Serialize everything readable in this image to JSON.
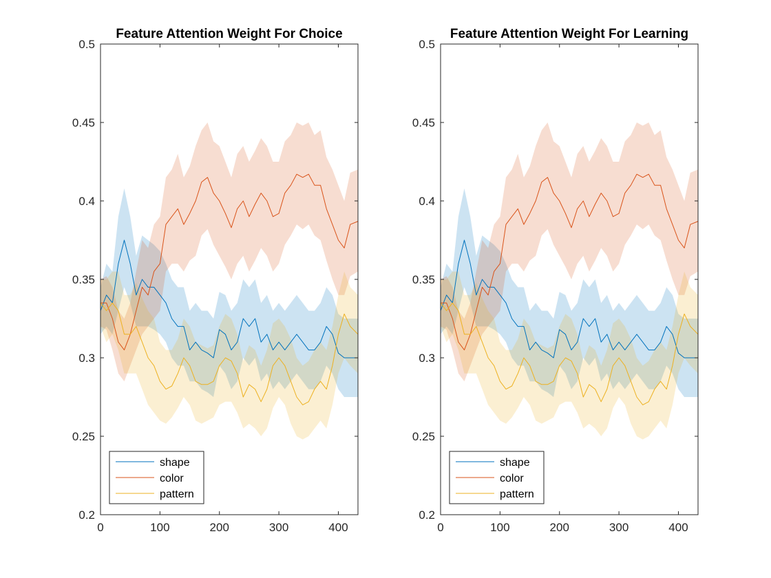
{
  "colors": {
    "shape": "#0072BD",
    "color": "#D95319",
    "pattern": "#EDB120",
    "axis": "#262626"
  },
  "chart_data": [
    {
      "type": "line",
      "title": "Feature Attention Weight For Choice",
      "xlabel": "",
      "ylabel": "",
      "xlim": [
        0,
        433
      ],
      "ylim": [
        0.2,
        0.5
      ],
      "xticks": [
        0,
        100,
        200,
        300,
        400
      ],
      "xtick_labels": [
        "0",
        "100",
        "200",
        "300",
        "400"
      ],
      "yticks": [
        0.2,
        0.25,
        0.3,
        0.35,
        0.4,
        0.45,
        0.5
      ],
      "ytick_labels": [
        "0.2",
        "0.25",
        "0.3",
        "0.35",
        "0.4",
        "0.45",
        "0.5"
      ],
      "grid": false,
      "legend_position": "bottom-left",
      "x": [
        0,
        10,
        20,
        30,
        40,
        50,
        60,
        70,
        80,
        90,
        100,
        110,
        120,
        130,
        140,
        150,
        160,
        170,
        180,
        190,
        200,
        210,
        220,
        230,
        240,
        250,
        260,
        270,
        280,
        290,
        300,
        310,
        320,
        330,
        340,
        350,
        360,
        370,
        380,
        390,
        400,
        410,
        420,
        433
      ],
      "series": [
        {
          "name": "shape",
          "color": "#0072BD",
          "values": [
            0.33,
            0.34,
            0.335,
            0.36,
            0.375,
            0.36,
            0.34,
            0.35,
            0.345,
            0.345,
            0.34,
            0.335,
            0.325,
            0.32,
            0.32,
            0.305,
            0.31,
            0.305,
            0.303,
            0.3,
            0.318,
            0.315,
            0.305,
            0.31,
            0.325,
            0.32,
            0.325,
            0.31,
            0.315,
            0.305,
            0.31,
            0.305,
            0.31,
            0.315,
            0.31,
            0.305,
            0.305,
            0.31,
            0.32,
            0.315,
            0.303,
            0.3,
            0.3,
            0.3
          ],
          "lower": [
            0.315,
            0.32,
            0.315,
            0.33,
            0.345,
            0.335,
            0.32,
            0.32,
            0.32,
            0.318,
            0.315,
            0.31,
            0.3,
            0.295,
            0.295,
            0.285,
            0.285,
            0.28,
            0.278,
            0.275,
            0.295,
            0.29,
            0.28,
            0.285,
            0.3,
            0.295,
            0.3,
            0.285,
            0.29,
            0.28,
            0.285,
            0.28,
            0.285,
            0.29,
            0.285,
            0.28,
            0.28,
            0.285,
            0.295,
            0.29,
            0.28,
            0.275,
            0.275,
            0.275
          ],
          "upper": [
            0.345,
            0.36,
            0.355,
            0.39,
            0.408,
            0.39,
            0.365,
            0.378,
            0.375,
            0.372,
            0.368,
            0.36,
            0.35,
            0.345,
            0.345,
            0.33,
            0.335,
            0.33,
            0.33,
            0.325,
            0.342,
            0.34,
            0.33,
            0.335,
            0.35,
            0.345,
            0.35,
            0.335,
            0.34,
            0.33,
            0.335,
            0.33,
            0.335,
            0.34,
            0.335,
            0.33,
            0.33,
            0.335,
            0.345,
            0.34,
            0.328,
            0.325,
            0.325,
            0.325
          ]
        },
        {
          "name": "color",
          "color": "#D95319",
          "values": [
            0.335,
            0.335,
            0.325,
            0.31,
            0.305,
            0.315,
            0.33,
            0.345,
            0.34,
            0.355,
            0.36,
            0.385,
            0.39,
            0.395,
            0.385,
            0.392,
            0.4,
            0.412,
            0.415,
            0.405,
            0.4,
            0.392,
            0.383,
            0.395,
            0.4,
            0.39,
            0.398,
            0.405,
            0.4,
            0.39,
            0.392,
            0.405,
            0.41,
            0.417,
            0.415,
            0.417,
            0.41,
            0.41,
            0.395,
            0.385,
            0.375,
            0.37,
            0.385,
            0.387
          ],
          "lower": [
            0.32,
            0.318,
            0.305,
            0.29,
            0.285,
            0.295,
            0.305,
            0.315,
            0.32,
            0.325,
            0.33,
            0.355,
            0.36,
            0.36,
            0.355,
            0.362,
            0.365,
            0.378,
            0.382,
            0.372,
            0.365,
            0.358,
            0.35,
            0.36,
            0.365,
            0.355,
            0.362,
            0.37,
            0.365,
            0.355,
            0.36,
            0.372,
            0.378,
            0.385,
            0.382,
            0.385,
            0.378,
            0.375,
            0.362,
            0.35,
            0.34,
            0.34,
            0.352,
            0.355
          ],
          "upper": [
            0.35,
            0.352,
            0.345,
            0.33,
            0.325,
            0.335,
            0.355,
            0.375,
            0.37,
            0.385,
            0.39,
            0.415,
            0.42,
            0.43,
            0.415,
            0.422,
            0.435,
            0.445,
            0.45,
            0.438,
            0.435,
            0.425,
            0.415,
            0.43,
            0.435,
            0.425,
            0.432,
            0.44,
            0.435,
            0.425,
            0.425,
            0.438,
            0.442,
            0.45,
            0.448,
            0.45,
            0.442,
            0.445,
            0.428,
            0.42,
            0.41,
            0.4,
            0.418,
            0.42
          ]
        },
        {
          "name": "pattern",
          "color": "#EDB120",
          "values": [
            0.335,
            0.33,
            0.335,
            0.33,
            0.315,
            0.315,
            0.32,
            0.31,
            0.3,
            0.295,
            0.285,
            0.28,
            0.282,
            0.29,
            0.3,
            0.295,
            0.285,
            0.283,
            0.283,
            0.285,
            0.295,
            0.3,
            0.298,
            0.29,
            0.275,
            0.283,
            0.28,
            0.272,
            0.28,
            0.295,
            0.3,
            0.295,
            0.285,
            0.275,
            0.27,
            0.272,
            0.28,
            0.285,
            0.28,
            0.295,
            0.315,
            0.328,
            0.32,
            0.315
          ],
          "lower": [
            0.32,
            0.31,
            0.315,
            0.305,
            0.29,
            0.29,
            0.29,
            0.28,
            0.27,
            0.265,
            0.26,
            0.258,
            0.262,
            0.268,
            0.275,
            0.27,
            0.26,
            0.258,
            0.26,
            0.262,
            0.27,
            0.272,
            0.272,
            0.265,
            0.255,
            0.258,
            0.255,
            0.25,
            0.255,
            0.268,
            0.275,
            0.27,
            0.258,
            0.25,
            0.248,
            0.25,
            0.255,
            0.26,
            0.255,
            0.27,
            0.29,
            0.3,
            0.295,
            0.29
          ],
          "upper": [
            0.35,
            0.35,
            0.355,
            0.355,
            0.34,
            0.34,
            0.348,
            0.338,
            0.33,
            0.325,
            0.31,
            0.305,
            0.305,
            0.312,
            0.325,
            0.32,
            0.31,
            0.308,
            0.306,
            0.308,
            0.32,
            0.328,
            0.325,
            0.315,
            0.298,
            0.308,
            0.305,
            0.295,
            0.305,
            0.322,
            0.325,
            0.32,
            0.312,
            0.3,
            0.295,
            0.298,
            0.305,
            0.31,
            0.305,
            0.32,
            0.34,
            0.355,
            0.345,
            0.34
          ]
        }
      ]
    },
    {
      "type": "line",
      "title": "Feature Attention Weight For Learning",
      "xlabel": "",
      "ylabel": "",
      "xlim": [
        0,
        433
      ],
      "ylim": [
        0.2,
        0.5
      ],
      "xticks": [
        0,
        100,
        200,
        300,
        400
      ],
      "xtick_labels": [
        "0",
        "100",
        "200",
        "300",
        "400"
      ],
      "yticks": [
        0.2,
        0.25,
        0.3,
        0.35,
        0.4,
        0.45,
        0.5
      ],
      "ytick_labels": [
        "0.2",
        "0.25",
        "0.3",
        "0.35",
        "0.4",
        "0.45",
        "0.5"
      ],
      "grid": false,
      "legend_position": "bottom-left",
      "x": [
        0,
        10,
        20,
        30,
        40,
        50,
        60,
        70,
        80,
        90,
        100,
        110,
        120,
        130,
        140,
        150,
        160,
        170,
        180,
        190,
        200,
        210,
        220,
        230,
        240,
        250,
        260,
        270,
        280,
        290,
        300,
        310,
        320,
        330,
        340,
        350,
        360,
        370,
        380,
        390,
        400,
        410,
        420,
        433
      ],
      "series": [
        {
          "name": "shape",
          "color": "#0072BD",
          "values": [
            0.33,
            0.34,
            0.335,
            0.36,
            0.375,
            0.36,
            0.34,
            0.35,
            0.345,
            0.345,
            0.34,
            0.335,
            0.325,
            0.32,
            0.32,
            0.305,
            0.31,
            0.305,
            0.303,
            0.3,
            0.318,
            0.315,
            0.305,
            0.31,
            0.325,
            0.32,
            0.325,
            0.31,
            0.315,
            0.305,
            0.31,
            0.305,
            0.31,
            0.315,
            0.31,
            0.305,
            0.305,
            0.31,
            0.32,
            0.315,
            0.303,
            0.3,
            0.3,
            0.3
          ],
          "lower": [
            0.315,
            0.32,
            0.315,
            0.33,
            0.345,
            0.335,
            0.32,
            0.32,
            0.32,
            0.318,
            0.315,
            0.31,
            0.3,
            0.295,
            0.295,
            0.285,
            0.285,
            0.28,
            0.278,
            0.275,
            0.295,
            0.29,
            0.28,
            0.285,
            0.3,
            0.295,
            0.3,
            0.285,
            0.29,
            0.28,
            0.285,
            0.28,
            0.285,
            0.29,
            0.285,
            0.28,
            0.28,
            0.285,
            0.295,
            0.29,
            0.28,
            0.275,
            0.275,
            0.275
          ],
          "upper": [
            0.345,
            0.36,
            0.355,
            0.39,
            0.408,
            0.39,
            0.365,
            0.378,
            0.375,
            0.372,
            0.368,
            0.36,
            0.35,
            0.345,
            0.345,
            0.33,
            0.335,
            0.33,
            0.33,
            0.325,
            0.342,
            0.34,
            0.33,
            0.335,
            0.35,
            0.345,
            0.35,
            0.335,
            0.34,
            0.33,
            0.335,
            0.33,
            0.335,
            0.34,
            0.335,
            0.33,
            0.33,
            0.335,
            0.345,
            0.34,
            0.328,
            0.325,
            0.325,
            0.325
          ]
        },
        {
          "name": "color",
          "color": "#D95319",
          "values": [
            0.335,
            0.335,
            0.325,
            0.31,
            0.305,
            0.315,
            0.33,
            0.345,
            0.34,
            0.355,
            0.36,
            0.385,
            0.39,
            0.395,
            0.385,
            0.392,
            0.4,
            0.412,
            0.415,
            0.405,
            0.4,
            0.392,
            0.383,
            0.395,
            0.4,
            0.39,
            0.398,
            0.405,
            0.4,
            0.39,
            0.392,
            0.405,
            0.41,
            0.417,
            0.415,
            0.417,
            0.41,
            0.41,
            0.395,
            0.385,
            0.375,
            0.37,
            0.385,
            0.387
          ],
          "lower": [
            0.32,
            0.318,
            0.305,
            0.29,
            0.285,
            0.295,
            0.305,
            0.315,
            0.32,
            0.325,
            0.33,
            0.355,
            0.36,
            0.36,
            0.355,
            0.362,
            0.365,
            0.378,
            0.382,
            0.372,
            0.365,
            0.358,
            0.35,
            0.36,
            0.365,
            0.355,
            0.362,
            0.37,
            0.365,
            0.355,
            0.36,
            0.372,
            0.378,
            0.385,
            0.382,
            0.385,
            0.378,
            0.375,
            0.362,
            0.35,
            0.34,
            0.34,
            0.352,
            0.355
          ],
          "upper": [
            0.35,
            0.352,
            0.345,
            0.33,
            0.325,
            0.335,
            0.355,
            0.375,
            0.37,
            0.385,
            0.39,
            0.415,
            0.42,
            0.43,
            0.415,
            0.422,
            0.435,
            0.445,
            0.45,
            0.438,
            0.435,
            0.425,
            0.415,
            0.43,
            0.435,
            0.425,
            0.432,
            0.44,
            0.435,
            0.425,
            0.425,
            0.438,
            0.442,
            0.45,
            0.448,
            0.45,
            0.442,
            0.445,
            0.428,
            0.42,
            0.41,
            0.4,
            0.418,
            0.42
          ]
        },
        {
          "name": "pattern",
          "color": "#EDB120",
          "values": [
            0.335,
            0.33,
            0.335,
            0.33,
            0.315,
            0.315,
            0.32,
            0.31,
            0.3,
            0.295,
            0.285,
            0.28,
            0.282,
            0.29,
            0.3,
            0.295,
            0.285,
            0.283,
            0.283,
            0.285,
            0.295,
            0.3,
            0.298,
            0.29,
            0.275,
            0.283,
            0.28,
            0.272,
            0.28,
            0.295,
            0.3,
            0.295,
            0.285,
            0.275,
            0.27,
            0.272,
            0.28,
            0.285,
            0.28,
            0.295,
            0.315,
            0.328,
            0.32,
            0.315
          ],
          "lower": [
            0.32,
            0.31,
            0.315,
            0.305,
            0.29,
            0.29,
            0.29,
            0.28,
            0.27,
            0.265,
            0.26,
            0.258,
            0.262,
            0.268,
            0.275,
            0.27,
            0.26,
            0.258,
            0.26,
            0.262,
            0.27,
            0.272,
            0.272,
            0.265,
            0.255,
            0.258,
            0.255,
            0.25,
            0.255,
            0.268,
            0.275,
            0.27,
            0.258,
            0.25,
            0.248,
            0.25,
            0.255,
            0.26,
            0.255,
            0.27,
            0.29,
            0.3,
            0.295,
            0.29
          ],
          "upper": [
            0.35,
            0.35,
            0.355,
            0.355,
            0.34,
            0.34,
            0.348,
            0.338,
            0.33,
            0.325,
            0.31,
            0.305,
            0.305,
            0.312,
            0.325,
            0.32,
            0.31,
            0.308,
            0.306,
            0.308,
            0.32,
            0.328,
            0.325,
            0.315,
            0.298,
            0.308,
            0.305,
            0.295,
            0.305,
            0.322,
            0.325,
            0.32,
            0.312,
            0.3,
            0.295,
            0.298,
            0.305,
            0.31,
            0.305,
            0.32,
            0.34,
            0.355,
            0.345,
            0.34
          ]
        }
      ]
    }
  ]
}
